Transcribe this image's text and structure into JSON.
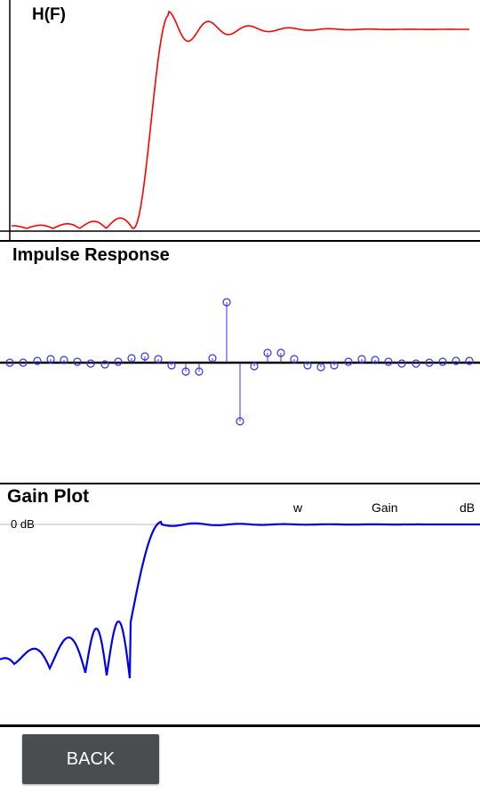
{
  "freq_panel": {
    "label": "H(F)",
    "line_color": "#ff0000"
  },
  "impulse_panel": {
    "title": "Impulse Response",
    "color": "#3333ee"
  },
  "gain_panel": {
    "title": "Gain Plot",
    "zero_db_label": "0 dB",
    "legend": {
      "w": "w",
      "gain": "Gain",
      "db": "dB"
    },
    "line_color": "#0000ee"
  },
  "back_button": {
    "label": "BACK"
  }
}
